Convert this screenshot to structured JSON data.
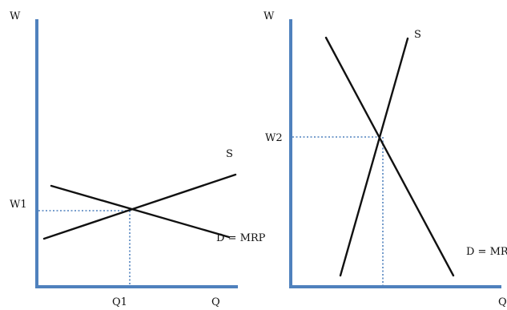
{
  "left_panel": {
    "y_axis_label": "W",
    "x_axis_label": "Q",
    "wage_label": "W1",
    "quantity_label": "Q1",
    "supply_label": "S",
    "demand_label": "D = MRP"
  },
  "right_panel": {
    "y_axis_label": "W",
    "x_axis_label": "Q",
    "wage_label": "W2",
    "supply_label": "S",
    "demand_label": "D = MR"
  },
  "colors": {
    "axis": "#4f81bd",
    "curve": "#111111",
    "guide_line": "#4f81bd"
  }
}
